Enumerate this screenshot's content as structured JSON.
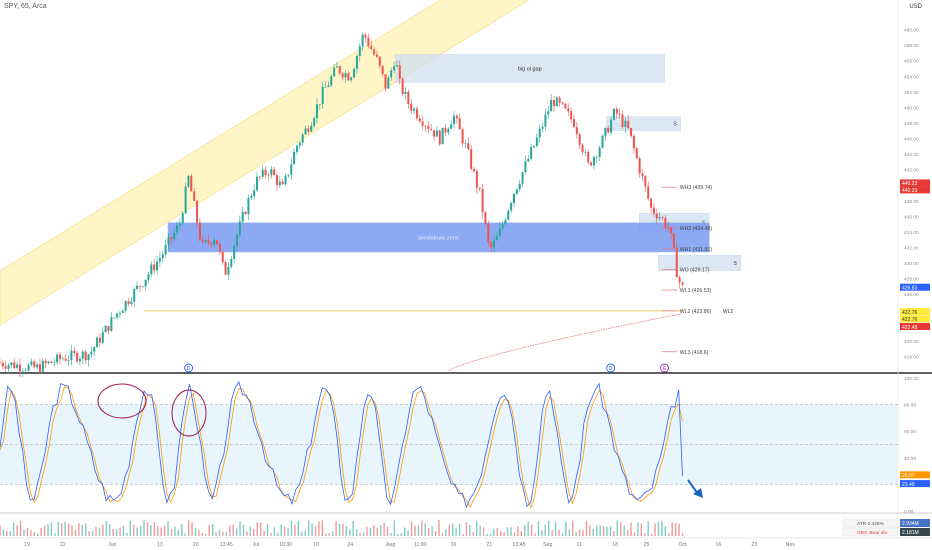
{
  "header": {
    "symbol": "SPY, 65, Arca",
    "currency": "USD"
  },
  "chart_data": {
    "type": "candlestick",
    "title": "SPY, 65, Arca",
    "ylim": [
      416,
      462
    ],
    "price_ticks": [
      418,
      420,
      422,
      424,
      426,
      428,
      430,
      432,
      434,
      436,
      438,
      440,
      442,
      444,
      446,
      448,
      450,
      452,
      454,
      456,
      458,
      460
    ],
    "price_tick_labels": [
      "418.00",
      "420.00",
      "422.00",
      "424.00",
      "426.00",
      "428.00",
      "430.00",
      "432.00",
      "434.00",
      "436.00",
      "438.00",
      "440.00",
      "442.00",
      "444.00",
      "446.00",
      "448.00",
      "450.00",
      "452.00",
      "454.00",
      "456.00",
      "458.00",
      "460.00"
    ],
    "time_labels": [
      {
        "t": 0.03,
        "label": "19"
      },
      {
        "t": 0.07,
        "label": "22"
      },
      {
        "t": 0.125,
        "label": "Jun"
      },
      {
        "t": 0.178,
        "label": "13"
      },
      {
        "t": 0.218,
        "label": "20"
      },
      {
        "t": 0.252,
        "label": "13:45"
      },
      {
        "t": 0.285,
        "label": "Jul"
      },
      {
        "t": 0.318,
        "label": "10:30"
      },
      {
        "t": 0.352,
        "label": "10"
      },
      {
        "t": 0.39,
        "label": "24"
      },
      {
        "t": 0.435,
        "label": "Aug"
      },
      {
        "t": 0.468,
        "label": "11:00"
      },
      {
        "t": 0.505,
        "label": "16"
      },
      {
        "t": 0.545,
        "label": "21"
      },
      {
        "t": 0.578,
        "label": "13:45"
      },
      {
        "t": 0.61,
        "label": "Sep"
      },
      {
        "t": 0.645,
        "label": "11"
      },
      {
        "t": 0.685,
        "label": "18"
      },
      {
        "t": 0.72,
        "label": "25"
      },
      {
        "t": 0.76,
        "label": "Oct"
      },
      {
        "t": 0.8,
        "label": "16"
      },
      {
        "t": 0.84,
        "label": "23"
      },
      {
        "t": 0.88,
        "label": "Nov"
      }
    ],
    "price_path": [
      [
        0.0,
        417.2
      ],
      [
        0.04,
        416.5
      ],
      [
        0.07,
        417.8
      ],
      [
        0.1,
        418.4
      ],
      [
        0.13,
        423.5
      ],
      [
        0.16,
        427.8
      ],
      [
        0.18,
        431.0
      ],
      [
        0.2,
        435.0
      ],
      [
        0.21,
        441.0
      ],
      [
        0.225,
        432.0
      ],
      [
        0.24,
        433.5
      ],
      [
        0.25,
        428.5
      ],
      [
        0.265,
        434.0
      ],
      [
        0.275,
        437.5
      ],
      [
        0.285,
        440.5
      ],
      [
        0.3,
        442.0
      ],
      [
        0.315,
        439.5
      ],
      [
        0.33,
        445.0
      ],
      [
        0.345,
        448.0
      ],
      [
        0.36,
        452.0
      ],
      [
        0.375,
        455.0
      ],
      [
        0.39,
        454.0
      ],
      [
        0.405,
        459.5
      ],
      [
        0.42,
        456.0
      ],
      [
        0.43,
        452.5
      ],
      [
        0.44,
        456.5
      ],
      [
        0.445,
        453.0
      ],
      [
        0.455,
        450.5
      ],
      [
        0.47,
        448.5
      ],
      [
        0.49,
        446.0
      ],
      [
        0.505,
        449.0
      ],
      [
        0.52,
        444.5
      ],
      [
        0.535,
        438.5
      ],
      [
        0.545,
        431.5
      ],
      [
        0.555,
        433.5
      ],
      [
        0.57,
        438.5
      ],
      [
        0.585,
        442.5
      ],
      [
        0.6,
        446.5
      ],
      [
        0.615,
        451.0
      ],
      [
        0.625,
        450.0
      ],
      [
        0.64,
        448.0
      ],
      [
        0.655,
        442.5
      ],
      [
        0.67,
        445.5
      ],
      [
        0.685,
        449.5
      ],
      [
        0.7,
        447.0
      ],
      [
        0.715,
        441.0
      ],
      [
        0.725,
        437.0
      ],
      [
        0.735,
        436.0
      ],
      [
        0.745,
        434.5
      ],
      [
        0.75,
        431.5
      ],
      [
        0.755,
        428.0
      ],
      [
        0.76,
        426.8
      ]
    ],
    "price_labels": [
      {
        "value": 440.23,
        "label": "440.23",
        "color": "#e53935"
      },
      {
        "value": 439.33,
        "label": "440.23",
        "color": "#e53935"
      },
      {
        "value": 426.83,
        "label": "426.83",
        "color": "#2962ff"
      },
      {
        "value": 423.7,
        "label": "422.76",
        "color": "#ffeb3b"
      },
      {
        "value": 422.76,
        "label": "422.76",
        "color": "#ffeb3b"
      },
      {
        "value": 421.78,
        "label": "422.48",
        "color": "#e53935"
      }
    ],
    "levels": [
      {
        "label": "WH3 (439.74)",
        "value": 439.74
      },
      {
        "label": "WH2 (434.48)",
        "value": 434.48
      },
      {
        "label": "WH1 (431.81)",
        "value": 431.81
      },
      {
        "label": "WO (429.17)",
        "value": 429.17
      },
      {
        "label": "WL1 (426.53)",
        "value": 426.53
      },
      {
        "label": "WL2 (423.86)",
        "value": 423.86
      },
      {
        "label": "WL3 (418.6)",
        "value": 418.6
      }
    ],
    "zones": [
      {
        "label": "big ol gap",
        "y0": 453.2,
        "y1": 456.8,
        "t0": 0.44,
        "t1": 0.74,
        "color": "#cfe0ef"
      },
      {
        "label": "S",
        "y0": 447.0,
        "y1": 448.8,
        "t0": 0.675,
        "t1": 0.758,
        "color": "#cfe0ef"
      },
      {
        "label": "S",
        "y0": 434.0,
        "y1": 436.4,
        "t0": 0.712,
        "t1": 0.79,
        "color": "#cfe0ef"
      },
      {
        "label": "S",
        "y0": 429.0,
        "y1": 431.0,
        "t0": 0.733,
        "t1": 0.825,
        "color": "#cfe0ef"
      },
      {
        "label": "breakdown zone",
        "y0": 431.4,
        "y1": 435.2,
        "t0": 0.187,
        "t1": 0.79,
        "color": "#7b9bf2"
      }
    ],
    "annotations": {
      "wl2_tag": "WL2",
      "breakdown_label": "breakdown zone",
      "gap_label": "big ol gap"
    },
    "event_markers": [
      {
        "t": 0.21,
        "label": "D"
      },
      {
        "t": 0.68,
        "label": "D"
      },
      {
        "t": 0.74,
        "label": "E"
      }
    ],
    "oscillator": {
      "ticks": [
        {
          "value": 100,
          "label": "100.00"
        },
        {
          "value": 80,
          "label": "80.00"
        },
        {
          "value": 60,
          "label": "60.00"
        },
        {
          "value": 40,
          "label": "40.00"
        },
        {
          "value": 20,
          "label": "20.00"
        },
        {
          "value": 0,
          "label": "0.00"
        }
      ],
      "bands": [
        80,
        50,
        20
      ],
      "k_label": "26.07",
      "d_label": "22.49",
      "k_value": 26.07,
      "d_value": 22.49,
      "k_color": "#ff9800",
      "d_color": "#2962ff"
    },
    "volume_panel": {
      "atr_label": "ATR",
      "atr_value": "0.426%",
      "atr_right": "2.934M",
      "obv_label": "OBV, Bear div.",
      "obv_right": "2.181M"
    }
  }
}
